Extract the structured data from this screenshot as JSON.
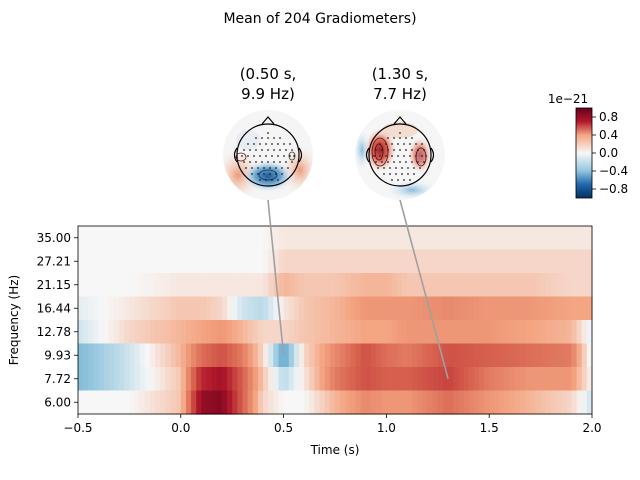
{
  "chart_data": {
    "type": "heatmap",
    "title": "Mean of 204 Gradiometers)",
    "xlabel": "Time (s)",
    "ylabel": "Frequency (Hz)",
    "xlim": [
      -0.5,
      2.0
    ],
    "x_ticks": [
      "−0.5",
      "0.0",
      "0.5",
      "1.0",
      "1.5",
      "2.0"
    ],
    "y_tick_labels": [
      "35.00",
      "27.21",
      "21.15",
      "16.44",
      "12.78",
      "9.93",
      "7.72",
      "6.00"
    ],
    "frequencies": [
      35.0,
      27.21,
      21.15,
      16.44,
      12.78,
      9.93,
      7.72,
      6.0
    ],
    "time_points": [
      -0.5,
      -0.25,
      0.0,
      0.1,
      0.2,
      0.3,
      0.4,
      0.5,
      0.6,
      0.75,
      0.9,
      1.0,
      1.1,
      1.3,
      1.5,
      1.7,
      1.9,
      2.0
    ],
    "values": [
      [
        0.0,
        0.0,
        0.0,
        0.0,
        0.0,
        0.0,
        0.0,
        0.05,
        0.05,
        0.05,
        0.05,
        0.05,
        0.05,
        0.05,
        0.05,
        0.05,
        0.05,
        0.05
      ],
      [
        0.0,
        0.0,
        0.0,
        0.0,
        0.0,
        0.0,
        0.0,
        0.1,
        0.1,
        0.1,
        0.1,
        0.1,
        0.1,
        0.1,
        0.1,
        0.1,
        0.1,
        0.1
      ],
      [
        0.0,
        0.0,
        0.05,
        0.05,
        0.05,
        0.05,
        0.05,
        0.2,
        0.15,
        0.15,
        0.2,
        0.2,
        0.15,
        0.15,
        0.15,
        0.15,
        0.1,
        0.1
      ],
      [
        -0.05,
        0.05,
        0.15,
        0.15,
        0.1,
        -0.1,
        -0.15,
        0.05,
        0.15,
        0.2,
        0.3,
        0.3,
        0.3,
        0.35,
        0.3,
        0.3,
        0.25,
        0.25
      ],
      [
        -0.1,
        0.1,
        0.2,
        0.25,
        0.3,
        0.2,
        0.1,
        0.1,
        0.15,
        0.2,
        0.25,
        0.25,
        0.3,
        0.3,
        0.3,
        0.25,
        0.2,
        -0.05
      ],
      [
        -0.3,
        -0.1,
        0.2,
        0.45,
        0.55,
        0.4,
        0.1,
        -0.4,
        0.1,
        0.35,
        0.55,
        0.45,
        0.4,
        0.55,
        0.5,
        0.45,
        0.4,
        -0.05
      ],
      [
        -0.3,
        -0.1,
        0.15,
        0.7,
        0.8,
        0.5,
        0.15,
        -0.15,
        0.05,
        0.4,
        0.55,
        0.5,
        0.5,
        0.6,
        0.4,
        0.3,
        0.3,
        0.0
      ],
      [
        0.0,
        0.0,
        0.15,
        0.85,
        0.9,
        0.5,
        0.1,
        0.0,
        0.0,
        0.2,
        0.35,
        0.3,
        0.3,
        0.45,
        0.3,
        0.2,
        0.1,
        -0.1
      ]
    ],
    "vlim": [
      -1.0,
      1.0
    ],
    "colormap": "RdBu_r",
    "colorbar": {
      "ticks": [
        "0.8",
        "0.4",
        "0.0",
        "−0.4",
        "−0.8"
      ],
      "scale_label": "1e−21"
    },
    "topomaps": [
      {
        "title_line1": "(0.50 s,",
        "title_line2": "9.9 Hz)",
        "time": 0.5,
        "freq": 9.93
      },
      {
        "title_line1": "(1.30 s,",
        "title_line2": "7.7 Hz)",
        "time": 1.3,
        "freq": 7.72
      }
    ]
  }
}
